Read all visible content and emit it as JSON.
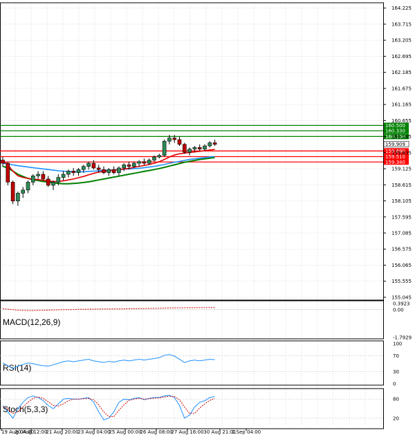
{
  "chart_data": [
    {
      "type": "candlestick",
      "panel": "price",
      "y_ticks": [
        "164.225",
        "163.715",
        "163.205",
        "162.695",
        "162.185",
        "161.675",
        "161.165",
        "160.655",
        "160.145",
        "159.635",
        "159.125",
        "158.615",
        "158.105",
        "157.595",
        "157.085",
        "156.575",
        "156.065",
        "155.555",
        "155.045"
      ],
      "ylim": [
        155.0,
        164.35
      ],
      "current_price": "159.909",
      "levels": [
        {
          "label": "160.500",
          "value": 160.5,
          "color": "#008000"
        },
        {
          "label": "160.330",
          "value": 160.33,
          "color": "#008000"
        },
        {
          "label": "160.150",
          "value": 160.15,
          "color": "#008000"
        },
        {
          "label": "159.690",
          "value": 159.69,
          "color": "#ff0000"
        },
        {
          "label": "159.510",
          "value": 159.51,
          "color": "#ff0000"
        },
        {
          "label": "159.340",
          "value": 159.34,
          "color": "#ff0000"
        }
      ],
      "x_ticks": [
        "19 Aug 04:00",
        "20 Aug 12:00",
        "21 Aug 20:00",
        "23 Aug 04:00",
        "25 Aug 00:00",
        "26 Aug 08:00",
        "27 Aug 16:00",
        "30 Aug 21:01",
        "1 Sep 04:00"
      ],
      "candles": [
        [
          159.4,
          159.5,
          159.2,
          159.3
        ],
        [
          159.3,
          159.35,
          158.6,
          158.7
        ],
        [
          158.7,
          158.75,
          158.0,
          158.1
        ],
        [
          158.1,
          158.4,
          157.95,
          158.35
        ],
        [
          158.35,
          158.55,
          158.2,
          158.45
        ],
        [
          158.45,
          158.75,
          158.35,
          158.7
        ],
        [
          158.7,
          158.95,
          158.6,
          158.9
        ],
        [
          158.9,
          159.05,
          158.8,
          158.95
        ],
        [
          158.95,
          159.05,
          158.75,
          158.8
        ],
        [
          158.8,
          158.9,
          158.55,
          158.6
        ],
        [
          158.6,
          158.75,
          158.45,
          158.7
        ],
        [
          158.7,
          158.95,
          158.6,
          158.85
        ],
        [
          158.85,
          159.05,
          158.75,
          158.95
        ],
        [
          158.95,
          159.1,
          158.85,
          159.05
        ],
        [
          159.05,
          159.15,
          158.9,
          159.0
        ],
        [
          159.0,
          159.15,
          158.9,
          159.1
        ],
        [
          159.1,
          159.25,
          159.0,
          159.2
        ],
        [
          159.2,
          159.35,
          159.1,
          159.3
        ],
        [
          159.3,
          159.4,
          159.1,
          159.15
        ],
        [
          159.15,
          159.25,
          159.0,
          159.1
        ],
        [
          159.1,
          159.2,
          158.95,
          159.0
        ],
        [
          159.0,
          159.15,
          158.9,
          159.1
        ],
        [
          159.1,
          159.2,
          158.95,
          159.0
        ],
        [
          159.0,
          159.2,
          158.9,
          159.15
        ],
        [
          159.15,
          159.3,
          159.05,
          159.25
        ],
        [
          159.25,
          159.35,
          159.1,
          159.2
        ],
        [
          159.2,
          159.35,
          159.15,
          159.3
        ],
        [
          159.3,
          159.4,
          159.2,
          159.35
        ],
        [
          159.35,
          159.45,
          159.25,
          159.3
        ],
        [
          159.3,
          159.45,
          159.25,
          159.4
        ],
        [
          159.4,
          159.55,
          159.35,
          159.5
        ],
        [
          159.5,
          159.6,
          159.45,
          159.55
        ],
        [
          159.55,
          160.05,
          159.5,
          160.0
        ],
        [
          160.0,
          160.2,
          159.9,
          160.1
        ],
        [
          160.1,
          160.2,
          159.95,
          160.05
        ],
        [
          160.05,
          160.15,
          159.85,
          159.9
        ],
        [
          159.9,
          159.95,
          159.6,
          159.65
        ],
        [
          159.65,
          159.8,
          159.55,
          159.75
        ],
        [
          159.75,
          159.85,
          159.65,
          159.8
        ],
        [
          159.8,
          159.9,
          159.7,
          159.75
        ],
        [
          159.75,
          159.9,
          159.7,
          159.85
        ],
        [
          159.85,
          160.0,
          159.8,
          159.95
        ],
        [
          159.95,
          160.05,
          159.85,
          159.9
        ]
      ],
      "ma_fast": [
        159.4,
        159.25,
        159.05,
        158.9,
        158.85,
        158.82,
        158.8,
        158.78,
        158.76,
        158.74,
        158.72,
        158.72,
        158.74,
        158.77,
        158.8,
        158.84,
        158.88,
        158.93,
        158.98,
        159.02,
        159.04,
        159.06,
        159.08,
        159.1,
        159.12,
        159.14,
        159.17,
        159.2,
        159.23,
        159.26,
        159.3,
        159.35,
        159.42,
        159.5,
        159.56,
        159.6,
        159.62,
        159.64,
        159.66,
        159.68,
        159.7,
        159.72,
        159.74
      ],
      "ma_mid": [
        159.3,
        159.28,
        159.25,
        159.22,
        159.2,
        159.18,
        159.16,
        159.14,
        159.12,
        159.1,
        159.08,
        159.06,
        159.05,
        159.04,
        159.03,
        159.03,
        159.03,
        159.04,
        159.05,
        159.06,
        159.07,
        159.08,
        159.09,
        159.1,
        159.11,
        159.12,
        159.13,
        159.14,
        159.16,
        159.18,
        159.2,
        159.23,
        159.26,
        159.3,
        159.33,
        159.36,
        159.39,
        159.42,
        159.44,
        159.46,
        159.48,
        159.5,
        159.51
      ],
      "ma_slow": [
        159.2,
        159.15,
        159.05,
        158.95,
        158.88,
        158.82,
        158.78,
        158.75,
        158.72,
        158.7,
        158.68,
        158.66,
        158.65,
        158.65,
        158.66,
        158.67,
        158.69,
        158.71,
        158.74,
        158.77,
        158.8,
        158.83,
        158.86,
        158.89,
        158.92,
        158.95,
        158.98,
        159.01,
        159.04,
        159.07,
        159.1,
        159.13,
        159.17,
        159.21,
        159.25,
        159.29,
        159.33,
        159.36,
        159.39,
        159.42,
        159.44,
        159.46,
        159.48
      ]
    },
    {
      "type": "line",
      "panel": "macd",
      "title": "MACD(12,26,9)",
      "y_ticks": [
        "0.3923",
        "0.00",
        "-1.7929"
      ],
      "ylim": [
        -1.7929,
        0.3923
      ],
      "signal": [
        0.06,
        0.03,
        0.0,
        -0.03,
        -0.05,
        -0.06,
        -0.06,
        -0.05,
        -0.04,
        -0.03,
        -0.02,
        -0.01,
        0.0,
        0.0,
        0.01,
        0.02,
        0.02,
        0.03,
        0.03,
        0.04,
        0.04,
        0.04,
        0.05,
        0.05,
        0.05,
        0.06,
        0.06,
        0.07,
        0.07,
        0.08,
        0.08,
        0.09,
        0.1,
        0.11,
        0.12,
        0.12,
        0.13,
        0.13,
        0.13,
        0.14,
        0.14,
        0.14,
        0.14
      ]
    },
    {
      "type": "line",
      "panel": "rsi",
      "title": "RSI(14)",
      "y_ticks": [
        "100",
        "70",
        "30",
        "0"
      ],
      "ylim": [
        0,
        100
      ],
      "values": [
        52,
        45,
        38,
        44,
        48,
        52,
        50,
        47,
        45,
        44,
        47,
        51,
        55,
        57,
        55,
        57,
        59,
        61,
        57,
        55,
        53,
        56,
        54,
        57,
        59,
        57,
        59,
        61,
        59,
        61,
        63,
        65,
        71,
        73,
        69,
        61,
        53,
        57,
        59,
        57,
        59,
        61,
        60
      ]
    },
    {
      "type": "line",
      "panel": "stoch",
      "title": "Stoch(5,3,3)",
      "y_ticks": [
        "80",
        "20"
      ],
      "ylim": [
        0,
        100
      ],
      "k": [
        60,
        40,
        20,
        50,
        70,
        85,
        90,
        85,
        75,
        60,
        50,
        65,
        80,
        82,
        80,
        80,
        82,
        85,
        70,
        40,
        15,
        20,
        40,
        70,
        80,
        78,
        82,
        85,
        78,
        82,
        85,
        85,
        90,
        92,
        85,
        60,
        20,
        30,
        55,
        70,
        75,
        85,
        88
      ],
      "d": [
        55,
        50,
        35,
        40,
        55,
        70,
        82,
        87,
        82,
        72,
        60,
        58,
        65,
        75,
        80,
        80,
        81,
        82,
        78,
        62,
        40,
        25,
        25,
        45,
        62,
        76,
        80,
        82,
        80,
        81,
        83,
        84,
        87,
        89,
        88,
        78,
        55,
        35,
        35,
        52,
        65,
        76,
        82
      ]
    }
  ]
}
